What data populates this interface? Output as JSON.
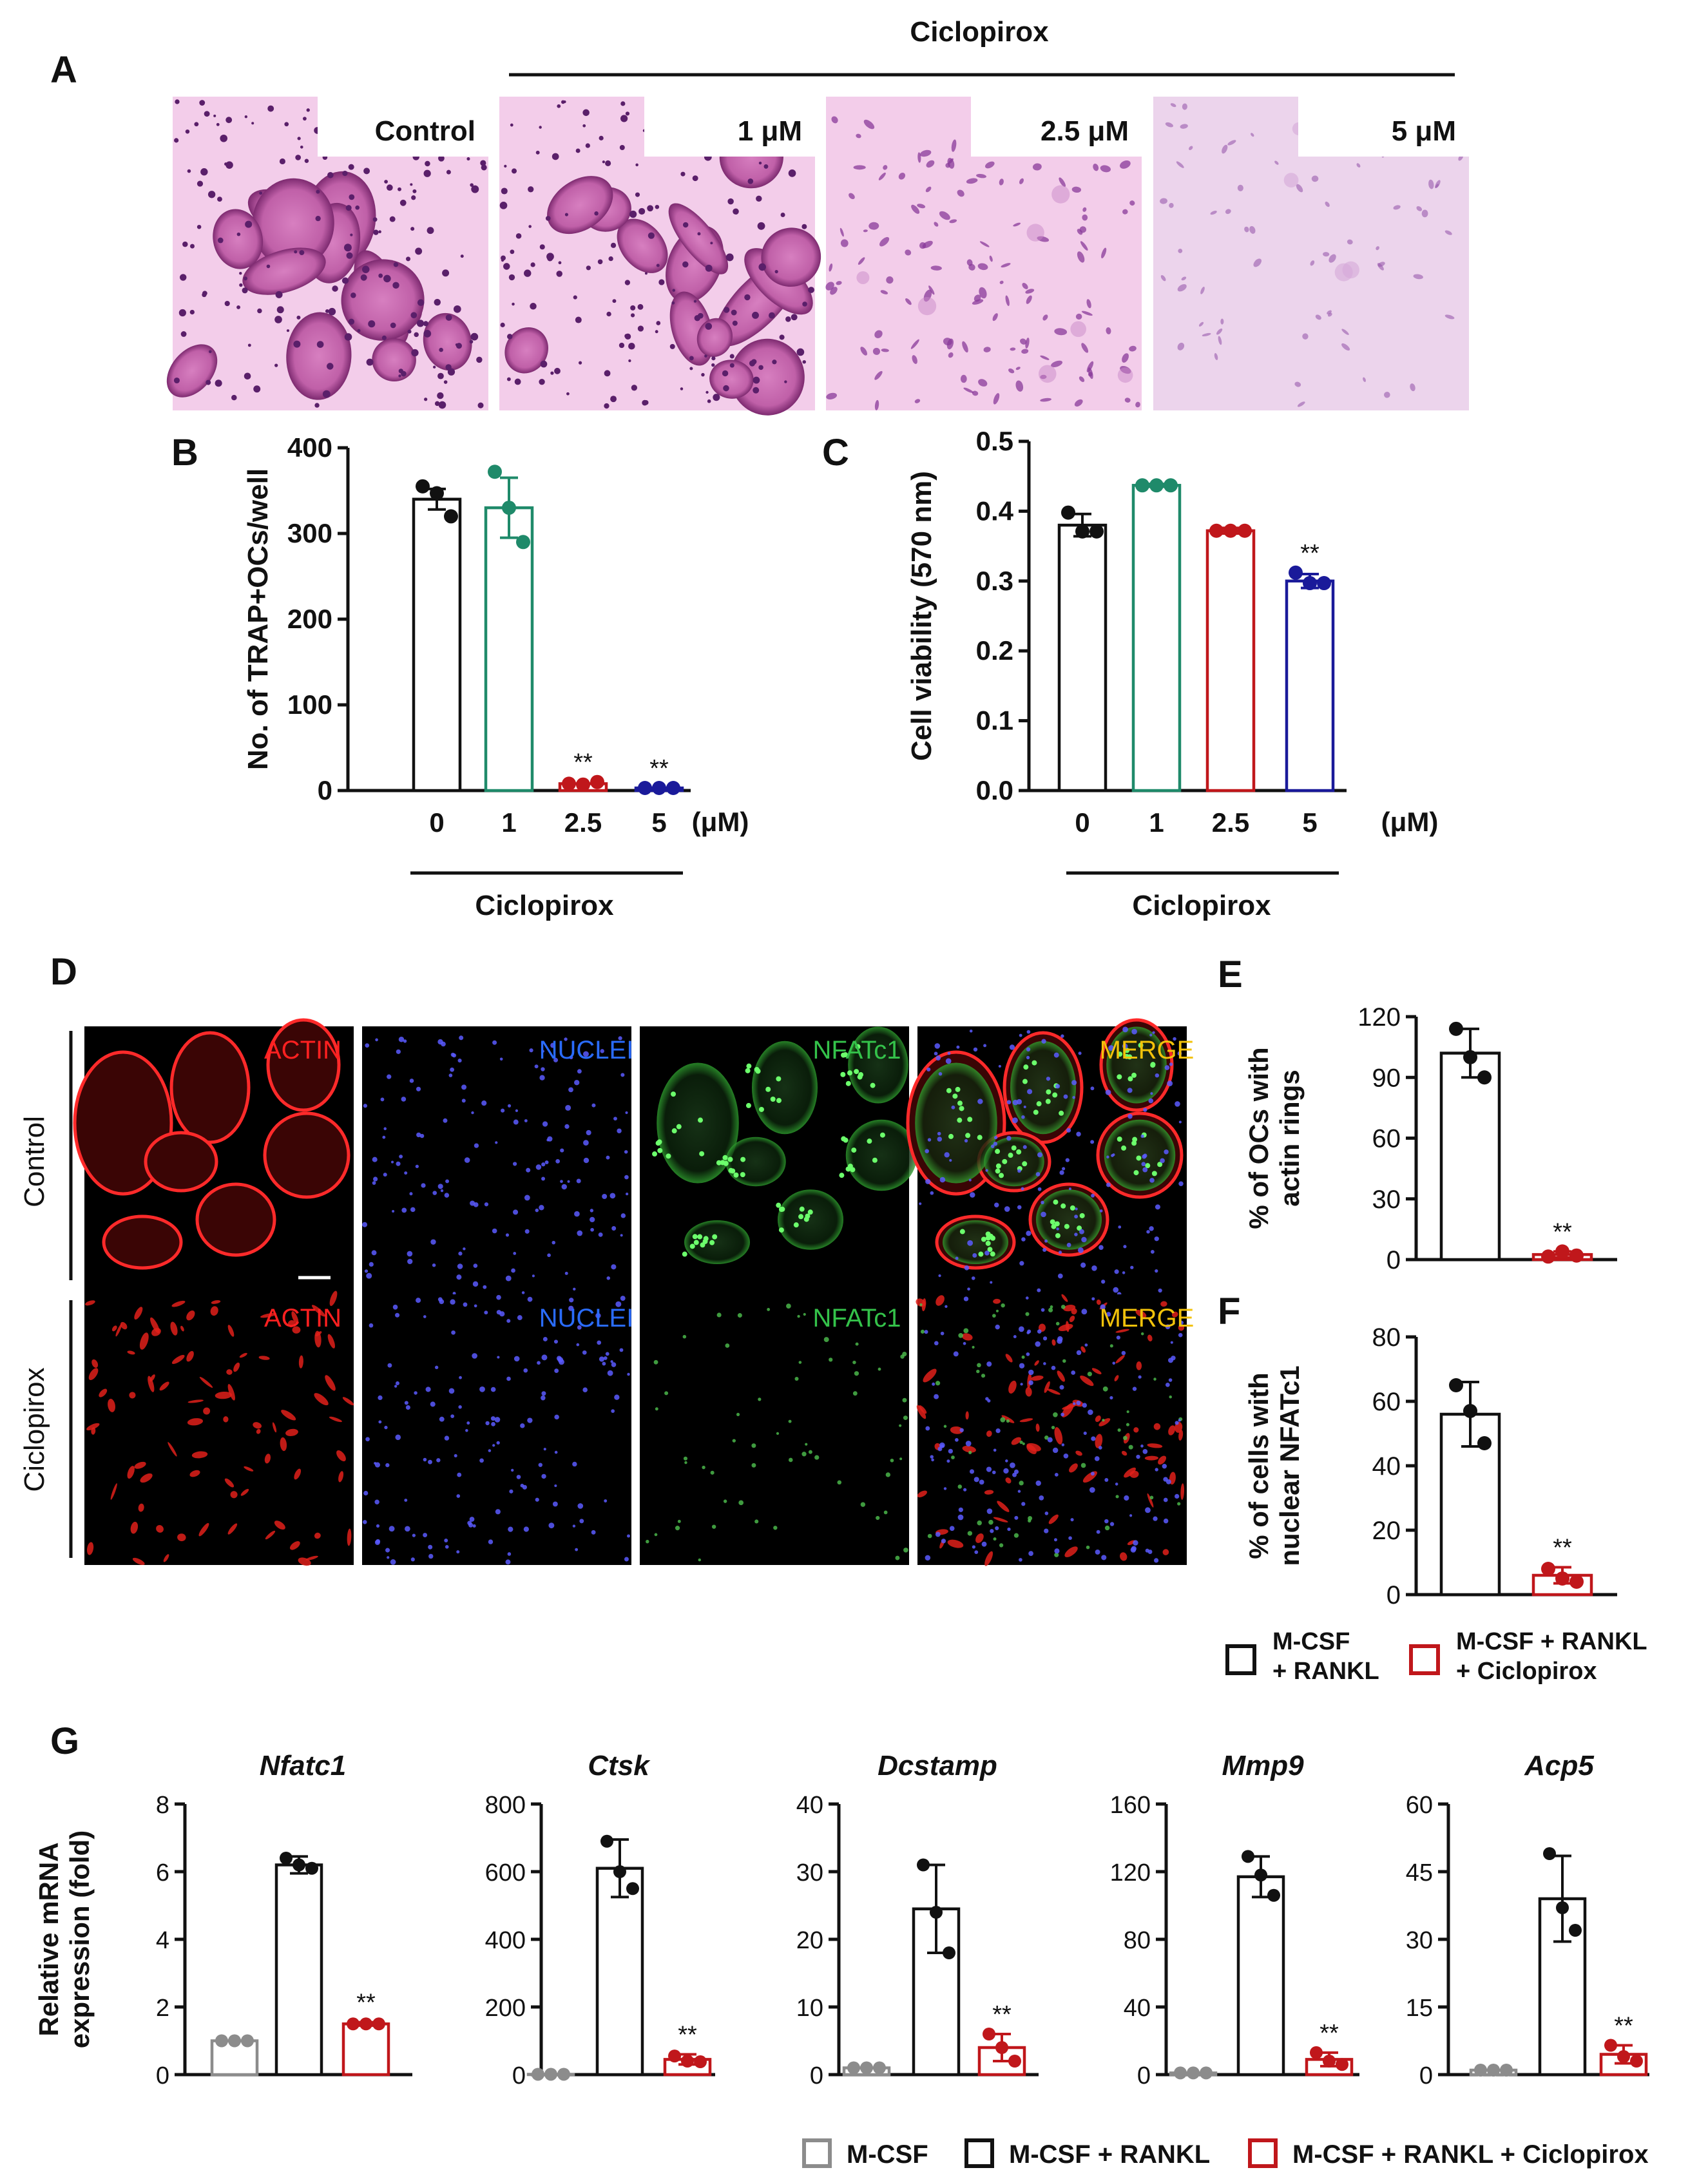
{
  "colors": {
    "black": "#111111",
    "green": "#1f8a6a",
    "red": "#c0171b",
    "navy": "#1a1a9a",
    "gray": "#8c8c8c",
    "actin_label": "#ff2020",
    "nuclei_label": "#2a6cff",
    "nfatc1_label": "#34c24a",
    "merge_label": "#f2c20a"
  },
  "panel_letters": [
    "A",
    "B",
    "C",
    "D",
    "E",
    "F",
    "G"
  ],
  "panelA": {
    "treatment_label": "Ciclopirox",
    "images": [
      {
        "label": "Control",
        "stain": "trap-dense"
      },
      {
        "label": "1 μM",
        "stain": "trap-dense"
      },
      {
        "label": "2.5 μM",
        "stain": "trap-sparse"
      },
      {
        "label": "5 μM",
        "stain": "trap-faint"
      }
    ]
  },
  "panelD": {
    "channels": [
      "ACTIN",
      "NUCLEI",
      "NFATc1",
      "MERGE"
    ],
    "rows": [
      "Control",
      "Ciclopirox"
    ]
  },
  "ciclopirox_bar_label": "Ciclopirox",
  "unit_label": "(μM)",
  "legendEF": {
    "items": [
      {
        "lines": [
          "M-CSF",
          "+ RANKL"
        ],
        "color": "black"
      },
      {
        "lines": [
          "M-CSF  + RANKL",
          "+ Ciclopirox"
        ],
        "color": "red"
      }
    ]
  },
  "legendG": {
    "items": [
      {
        "text": "M-CSF",
        "color": "gray"
      },
      {
        "text": "M-CSF  + RANKL",
        "color": "black"
      },
      {
        "text": "M-CSF  + RANKL  + Ciclopirox",
        "color": "red"
      }
    ]
  },
  "chart_data": [
    {
      "id": "B",
      "type": "bar",
      "ylabel": "No. of TRAP+OCs/well",
      "categories": [
        "0",
        "1",
        "2.5",
        "5"
      ],
      "ylim": [
        0,
        400
      ],
      "yticks": [
        0,
        100,
        200,
        300,
        400
      ],
      "bar_colors": [
        "black",
        "green",
        "red",
        "navy"
      ],
      "values": [
        340,
        330,
        8,
        3
      ],
      "sd": [
        12,
        35,
        0,
        0
      ],
      "points": [
        [
          355,
          347,
          320
        ],
        [
          372,
          330,
          290
        ],
        [
          8,
          7,
          10
        ],
        [
          3,
          3,
          3
        ]
      ],
      "significance": [
        "",
        "",
        "**",
        "**"
      ]
    },
    {
      "id": "C",
      "type": "bar",
      "ylabel": "Cell viability (570 nm)",
      "categories": [
        "0",
        "1",
        "2.5",
        "5"
      ],
      "ylim": [
        0,
        0.5
      ],
      "yticks": [
        0.0,
        0.1,
        0.2,
        0.3,
        0.4,
        0.5
      ],
      "tick_labels": [
        "0.0",
        "0.1",
        "0.2",
        "0.3",
        "0.4",
        "0.5"
      ],
      "bar_colors": [
        "black",
        "green",
        "red",
        "navy"
      ],
      "values": [
        0.38,
        0.437,
        0.372,
        0.3
      ],
      "sd": [
        0.016,
        0.002,
        0.004,
        0.01
      ],
      "points": [
        [
          0.398,
          0.371,
          0.371
        ],
        [
          0.437,
          0.437,
          0.437
        ],
        [
          0.372,
          0.372,
          0.372
        ],
        [
          0.312,
          0.297,
          0.297
        ]
      ],
      "significance": [
        "",
        "",
        "",
        "**"
      ]
    },
    {
      "id": "E",
      "type": "bar",
      "ylabel_lines": [
        "% of OCs with",
        "actin rings"
      ],
      "categories": [
        "M-CSF + RANKL",
        "M-CSF + RANKL + Ciclopirox"
      ],
      "ylim": [
        0,
        120
      ],
      "yticks": [
        0,
        30,
        60,
        90,
        120
      ],
      "bar_colors": [
        "black",
        "red"
      ],
      "values": [
        102,
        2.5
      ],
      "sd": [
        12,
        1.5
      ],
      "points": [
        [
          114,
          100,
          90
        ],
        [
          1.5,
          4,
          2
        ]
      ],
      "significance": [
        "",
        "**"
      ]
    },
    {
      "id": "F",
      "type": "bar",
      "ylabel_lines": [
        "% of cells with",
        "nuclear  NFATc1"
      ],
      "categories": [
        "M-CSF + RANKL",
        "M-CSF + RANKL + Ciclopirox"
      ],
      "ylim": [
        0,
        80
      ],
      "yticks": [
        0,
        20,
        40,
        60,
        80
      ],
      "bar_colors": [
        "black",
        "red"
      ],
      "values": [
        56,
        6
      ],
      "sd": [
        10,
        2.5
      ],
      "points": [
        [
          65,
          57,
          47
        ],
        [
          8,
          5,
          4
        ]
      ],
      "significance": [
        "",
        "**"
      ]
    },
    {
      "id": "G1",
      "type": "bar",
      "title": "Nfatc1",
      "ylabel_lines": [
        "Relative mRNA",
        "expression (fold)"
      ],
      "categories": [
        "M-CSF",
        "M-CSF + RANKL",
        "M-CSF + RANKL + Ciclopirox"
      ],
      "ylim": [
        0,
        8
      ],
      "yticks": [
        0,
        2,
        4,
        6,
        8
      ],
      "bar_colors": [
        "gray",
        "black",
        "red"
      ],
      "values": [
        1,
        6.2,
        1.5
      ],
      "sd": [
        0,
        0.25,
        0.05
      ],
      "points": [
        [
          1,
          1,
          1
        ],
        [
          6.4,
          6.2,
          6.1
        ],
        [
          1.5,
          1.5,
          1.5
        ]
      ],
      "significance": [
        "",
        "",
        "**"
      ]
    },
    {
      "id": "G2",
      "type": "bar",
      "title": "Ctsk",
      "categories": [
        "M-CSF",
        "M-CSF + RANKL",
        "M-CSF + RANKL + Ciclopirox"
      ],
      "ylim": [
        0,
        800
      ],
      "yticks": [
        0,
        200,
        400,
        600,
        800
      ],
      "bar_colors": [
        "gray",
        "black",
        "red"
      ],
      "values": [
        1,
        610,
        45
      ],
      "sd": [
        0,
        85,
        15
      ],
      "points": [
        [
          1,
          1,
          1
        ],
        [
          690,
          600,
          550
        ],
        [
          55,
          40,
          38
        ]
      ],
      "significance": [
        "",
        "",
        "**"
      ]
    },
    {
      "id": "G3",
      "type": "bar",
      "title": "Dcstamp",
      "categories": [
        "M-CSF",
        "M-CSF + RANKL",
        "M-CSF + RANKL + Ciclopirox"
      ],
      "ylim": [
        0,
        40
      ],
      "yticks": [
        0,
        10,
        20,
        30,
        40
      ],
      "bar_colors": [
        "gray",
        "black",
        "red"
      ],
      "values": [
        1,
        24.5,
        4
      ],
      "sd": [
        0,
        6.5,
        2
      ],
      "points": [
        [
          1,
          1,
          1
        ],
        [
          31,
          24,
          18
        ],
        [
          6,
          4,
          2
        ]
      ],
      "significance": [
        "",
        "",
        "**"
      ]
    },
    {
      "id": "G4",
      "type": "bar",
      "title": "Mmp9",
      "categories": [
        "M-CSF",
        "M-CSF + RANKL",
        "M-CSF + RANKL + Ciclopirox"
      ],
      "ylim": [
        0,
        160
      ],
      "yticks": [
        0,
        40,
        80,
        120,
        160
      ],
      "bar_colors": [
        "gray",
        "black",
        "red"
      ],
      "values": [
        1,
        117,
        9
      ],
      "sd": [
        0,
        12,
        4
      ],
      "points": [
        [
          1,
          1,
          1
        ],
        [
          129,
          118,
          106
        ],
        [
          13,
          8,
          6
        ]
      ],
      "significance": [
        "",
        "",
        "**"
      ]
    },
    {
      "id": "G5",
      "type": "bar",
      "title": "Acp5",
      "categories": [
        "M-CSF",
        "M-CSF + RANKL",
        "M-CSF + RANKL + Ciclopirox"
      ],
      "ylim": [
        0,
        60
      ],
      "yticks": [
        0,
        15,
        30,
        45,
        60
      ],
      "bar_colors": [
        "gray",
        "black",
        "red"
      ],
      "values": [
        1,
        39,
        4.5
      ],
      "sd": [
        0,
        9.5,
        2
      ],
      "points": [
        [
          1,
          1,
          1
        ],
        [
          49,
          37,
          32
        ],
        [
          6.5,
          4,
          3
        ]
      ],
      "significance": [
        "",
        "",
        "**"
      ]
    }
  ]
}
